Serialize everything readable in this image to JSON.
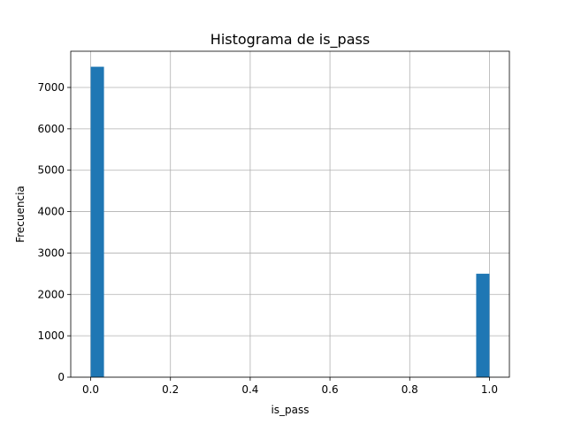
{
  "chart_data": {
    "type": "bar",
    "title": "Histograma de is_pass",
    "xlabel": "is_pass",
    "ylabel": "Frecuencia",
    "bins": 30,
    "bin_range": [
      0,
      1
    ],
    "bars": [
      {
        "x": 0.0,
        "value": 7500
      },
      {
        "x": 0.9667,
        "value": 2500
      }
    ],
    "xlim": [
      -0.05,
      1.05
    ],
    "ylim": [
      0,
      7875
    ],
    "xticks": [
      0.0,
      0.2,
      0.4,
      0.6,
      0.8,
      1.0
    ],
    "xtick_labels": [
      "0.0",
      "0.2",
      "0.4",
      "0.6",
      "0.8",
      "1.0"
    ],
    "yticks": [
      0,
      1000,
      2000,
      3000,
      4000,
      5000,
      6000,
      7000
    ],
    "ytick_labels": [
      "0",
      "1000",
      "2000",
      "3000",
      "4000",
      "5000",
      "6000",
      "7000"
    ],
    "grid": true,
    "bar_color": "#1f77b4"
  }
}
